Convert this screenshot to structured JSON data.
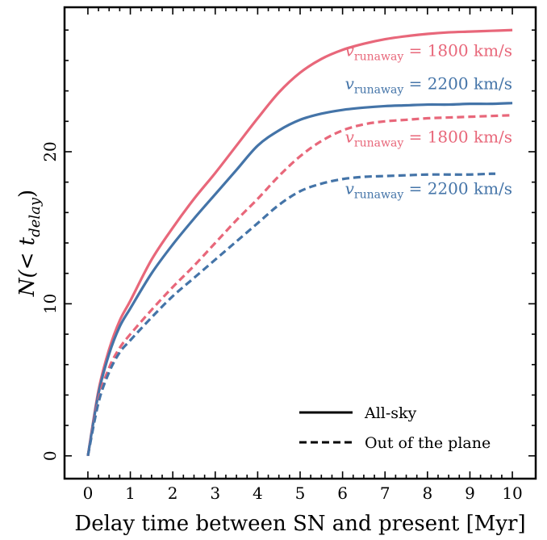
{
  "chart_data": {
    "type": "line",
    "title": "",
    "xlabel": "Delay time between SN and present [Myr]",
    "ylabel_main": "N(< t",
    "ylabel_sub": "delay",
    "ylabel_close": ")",
    "xlim": [
      -0.55,
      10.55
    ],
    "ylim": [
      -1.5,
      29.5
    ],
    "x_ticks": [
      0,
      1,
      2,
      3,
      4,
      5,
      6,
      7,
      8,
      9,
      10
    ],
    "y_ticks": [
      0,
      10,
      20
    ],
    "grid": false,
    "colors": {
      "red": "#e8677a",
      "blue": "#4474a8"
    },
    "series": [
      {
        "id": "allsky-1800",
        "style": "solid",
        "color": "#e8677a",
        "x": [
          0,
          0.25,
          0.5,
          0.75,
          1,
          1.5,
          2,
          2.5,
          3,
          3.5,
          4,
          4.5,
          5,
          5.5,
          6,
          6.5,
          7,
          7.5,
          8,
          8.5,
          9,
          9.5,
          10
        ],
        "y": [
          0,
          4.3,
          7.0,
          8.9,
          10.2,
          12.9,
          15.0,
          16.9,
          18.6,
          20.4,
          22.2,
          23.9,
          25.2,
          26.1,
          26.7,
          27.1,
          27.4,
          27.6,
          27.75,
          27.85,
          27.9,
          27.95,
          28.0
        ]
      },
      {
        "id": "allsky-2200",
        "style": "solid",
        "color": "#4474a8",
        "x": [
          0,
          0.25,
          0.5,
          0.75,
          1,
          1.5,
          2,
          2.5,
          3,
          3.5,
          4,
          4.5,
          5,
          5.5,
          6,
          6.5,
          7,
          7.5,
          8,
          8.5,
          9,
          9.5,
          10
        ],
        "y": [
          0,
          4.1,
          6.7,
          8.5,
          9.7,
          12.0,
          13.9,
          15.6,
          17.2,
          18.8,
          20.4,
          21.4,
          22.1,
          22.5,
          22.75,
          22.9,
          23.0,
          23.05,
          23.1,
          23.1,
          23.15,
          23.15,
          23.2
        ]
      },
      {
        "id": "outplane-1800",
        "style": "dashed",
        "color": "#e8677a",
        "x": [
          0,
          0.25,
          0.5,
          0.75,
          1,
          1.5,
          2,
          2.5,
          3,
          3.5,
          4,
          4.5,
          5,
          5.5,
          6,
          6.5,
          7,
          7.5,
          8,
          8.5,
          9,
          9.5,
          10
        ],
        "y": [
          0,
          3.7,
          5.8,
          7.1,
          8.0,
          9.6,
          11.1,
          12.5,
          14.0,
          15.5,
          16.9,
          18.4,
          19.7,
          20.7,
          21.4,
          21.8,
          22.0,
          22.1,
          22.2,
          22.25,
          22.3,
          22.35,
          22.4
        ]
      },
      {
        "id": "outplane-2200",
        "style": "dashed",
        "color": "#4474a8",
        "x": [
          0,
          0.25,
          0.5,
          0.75,
          1,
          1.5,
          2,
          2.5,
          3,
          3.5,
          4,
          4.5,
          5,
          5.5,
          6,
          6.5,
          7,
          7.5,
          8,
          8.5,
          9,
          9.5,
          9.6
        ],
        "y": [
          0,
          3.5,
          5.5,
          6.8,
          7.6,
          9.1,
          10.5,
          11.7,
          12.9,
          14.1,
          15.3,
          16.5,
          17.4,
          17.9,
          18.2,
          18.35,
          18.4,
          18.45,
          18.5,
          18.5,
          18.5,
          18.55,
          18.55
        ]
      }
    ],
    "annotations": [
      {
        "symbol": "v",
        "sub": "runaway",
        "text": " = 1800 km/s",
        "color": "#e8677a",
        "x": 10,
        "y": 26.3
      },
      {
        "symbol": "v",
        "sub": "runaway",
        "text": " = 2200 km/s",
        "color": "#4474a8",
        "x": 10,
        "y": 24.1
      },
      {
        "symbol": "v",
        "sub": "runaway",
        "text": " = 1800 km/s",
        "color": "#e8677a",
        "x": 10,
        "y": 20.6
      },
      {
        "symbol": "v",
        "sub": "runaway",
        "text": " = 2200 km/s",
        "color": "#4474a8",
        "x": 10,
        "y": 17.2
      }
    ],
    "legend": {
      "placement": "lower-right",
      "entries": [
        {
          "label": "All-sky",
          "style": "solid"
        },
        {
          "label": "Out of the plane",
          "style": "dashed"
        }
      ]
    }
  }
}
